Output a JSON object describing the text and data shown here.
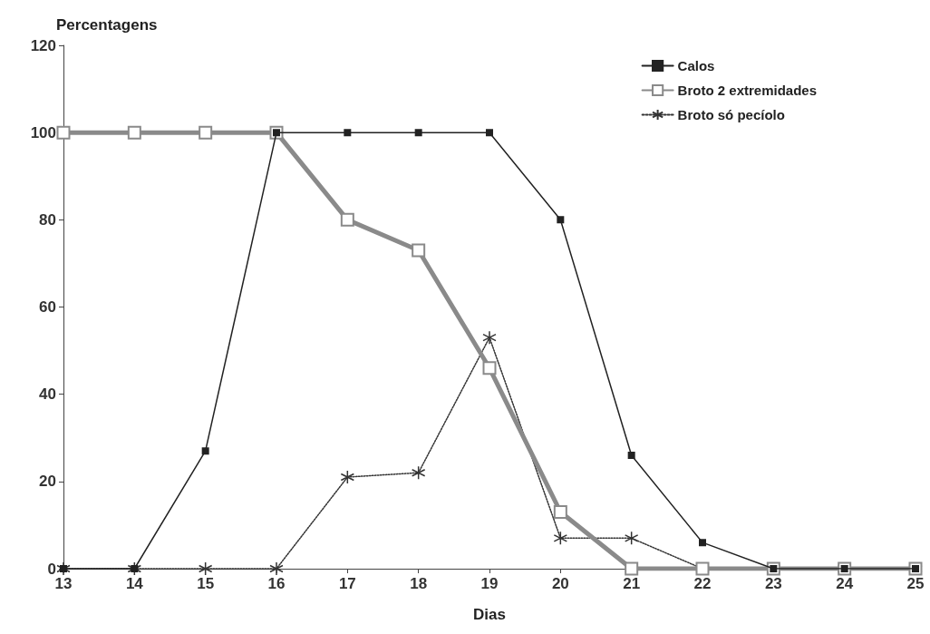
{
  "chart_data": {
    "type": "line",
    "xlabel": "Dias",
    "ylabel": "Percentagens",
    "x": [
      13,
      14,
      15,
      16,
      17,
      18,
      19,
      20,
      21,
      22,
      23,
      24,
      25
    ],
    "xlim": [
      13,
      25
    ],
    "xticks": [
      13,
      14,
      15,
      16,
      17,
      18,
      19,
      20,
      21,
      22,
      23,
      24,
      25
    ],
    "ylim": [
      0,
      120
    ],
    "yticks": [
      0,
      20,
      40,
      60,
      80,
      100,
      120
    ],
    "grid": false,
    "legend": "top right",
    "series": [
      {
        "name": "Calos",
        "color": "#222222",
        "marker": "square",
        "line_style": "solid",
        "values": [
          0,
          0,
          27,
          100,
          100,
          100,
          100,
          80,
          26,
          6,
          0,
          0,
          0
        ]
      },
      {
        "name": "Broto 2 extremidades",
        "color": "#8a8a8a",
        "marker": "square",
        "line_style": "solid",
        "values": [
          100,
          100,
          100,
          100,
          80,
          73,
          46,
          13,
          0,
          0,
          0,
          0,
          0
        ]
      },
      {
        "name": "Broto só pecíolo",
        "color": "#333333",
        "marker": "cross",
        "line_style": "dotted",
        "values": [
          0,
          0,
          0,
          0,
          21,
          22,
          53,
          7,
          7,
          0,
          0,
          0,
          0
        ]
      }
    ]
  }
}
